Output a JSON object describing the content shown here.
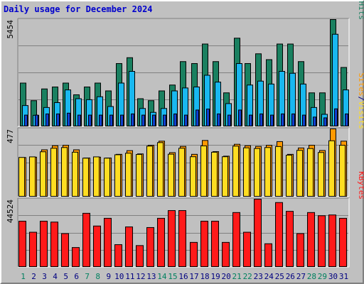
{
  "title": "Daily usage for December 2024",
  "colors": {
    "hits": "#1a8060",
    "files": "#19b8f0",
    "pages": "#1040d0",
    "visits": "#ffdd22",
    "sites": "#ff9900",
    "kbytes": "#ff1a1a",
    "days_weekday": "#000080",
    "days_weekend": "#00805f",
    "panel_bg": "#c0c0c0",
    "grid": "#808080"
  },
  "chart_data": [
    {
      "type": "bar",
      "panel": "hits-files-pages",
      "categories": [
        "1",
        "2",
        "3",
        "4",
        "5",
        "6",
        "7",
        "8",
        "9",
        "10",
        "11",
        "12",
        "13",
        "14",
        "15",
        "16",
        "17",
        "18",
        "19",
        "20",
        "21",
        "22",
        "23",
        "24",
        "25",
        "26",
        "27",
        "28",
        "29",
        "30",
        "31"
      ],
      "ymax_label": "5454",
      "ylim": [
        0,
        5454
      ],
      "legend": [
        {
          "text": "Pages",
          "color": "#1040d0"
        },
        {
          "text": "/",
          "color": "#000080"
        },
        {
          "text": "Files",
          "color": "#19b8f0"
        },
        {
          "text": "/",
          "color": "#000080"
        },
        {
          "text": "Hits",
          "color": "#1a8060"
        }
      ],
      "series": [
        {
          "name": "Hits",
          "values": [
            2200,
            1300,
            1900,
            2000,
            2200,
            1600,
            2000,
            2200,
            1800,
            3200,
            3500,
            1400,
            1300,
            1800,
            2100,
            3300,
            3200,
            4200,
            3300,
            1700,
            4500,
            3200,
            3700,
            3400,
            4200,
            4200,
            3300,
            1700,
            1700,
            5454,
            3000
          ]
        },
        {
          "name": "Files",
          "values": [
            1050,
            550,
            950,
            1200,
            1850,
            1400,
            1350,
            1500,
            1000,
            2200,
            2800,
            900,
            700,
            900,
            1800,
            1950,
            2000,
            2600,
            2250,
            1150,
            3200,
            2100,
            2300,
            2150,
            2800,
            2700,
            2150,
            950,
            600,
            4700,
            1850
          ]
        },
        {
          "name": "Pages",
          "values": [
            560,
            560,
            620,
            620,
            660,
            560,
            560,
            560,
            560,
            560,
            620,
            560,
            560,
            560,
            620,
            560,
            820,
            870,
            620,
            560,
            820,
            560,
            620,
            560,
            620,
            620,
            560,
            460,
            420,
            880,
            620
          ]
        }
      ]
    },
    {
      "type": "bar",
      "panel": "visits-sites",
      "categories": [
        "1",
        "2",
        "3",
        "4",
        "5",
        "6",
        "7",
        "8",
        "9",
        "10",
        "11",
        "12",
        "13",
        "14",
        "15",
        "16",
        "17",
        "18",
        "19",
        "20",
        "21",
        "22",
        "23",
        "24",
        "25",
        "26",
        "27",
        "28",
        "29",
        "30",
        "31"
      ],
      "ymax_label": "477",
      "ylim": [
        0,
        477
      ],
      "legend": [
        {
          "text": "Sites",
          "color": "#ff9900"
        },
        {
          "text": "/",
          "color": "#000080"
        },
        {
          "text": "Visits",
          "color": "#ffdd22"
        }
      ],
      "series": [
        {
          "name": "Sites",
          "values": [
            274,
            277,
            329,
            358,
            361,
            329,
            271,
            277,
            271,
            297,
            323,
            300,
            361,
            390,
            309,
            353,
            297,
            395,
            316,
            284,
            368,
            358,
            353,
            361,
            387,
            297,
            342,
            361,
            324,
            477,
            390
          ]
        },
        {
          "name": "Visits",
          "values": [
            275,
            279,
            315,
            340,
            345,
            312,
            270,
            279,
            270,
            294,
            305,
            296,
            355,
            380,
            298,
            340,
            280,
            357,
            312,
            280,
            355,
            343,
            338,
            345,
            352,
            291,
            325,
            338,
            310,
            393,
            361
          ]
        }
      ]
    },
    {
      "type": "bar",
      "panel": "kbytes",
      "categories": [
        "1",
        "2",
        "3",
        "4",
        "5",
        "6",
        "7",
        "8",
        "9",
        "10",
        "11",
        "12",
        "13",
        "14",
        "15",
        "16",
        "17",
        "18",
        "19",
        "20",
        "21",
        "22",
        "23",
        "24",
        "25",
        "26",
        "27",
        "28",
        "29",
        "30",
        "31"
      ],
      "ymax_label": "44524",
      "ylim": [
        0,
        44524
      ],
      "legend": [
        {
          "text": "KBytes",
          "color": "#ff1a1a"
        }
      ],
      "series": [
        {
          "name": "KBytes",
          "values": [
            30000,
            22700,
            30000,
            29400,
            21800,
            12600,
            35200,
            26800,
            31900,
            14500,
            26200,
            13900,
            25800,
            31900,
            37000,
            37000,
            16000,
            30000,
            30000,
            16000,
            35700,
            22700,
            44524,
            15100,
            42300,
            36500,
            21800,
            35700,
            33600,
            34100,
            31900
          ]
        }
      ]
    }
  ]
}
